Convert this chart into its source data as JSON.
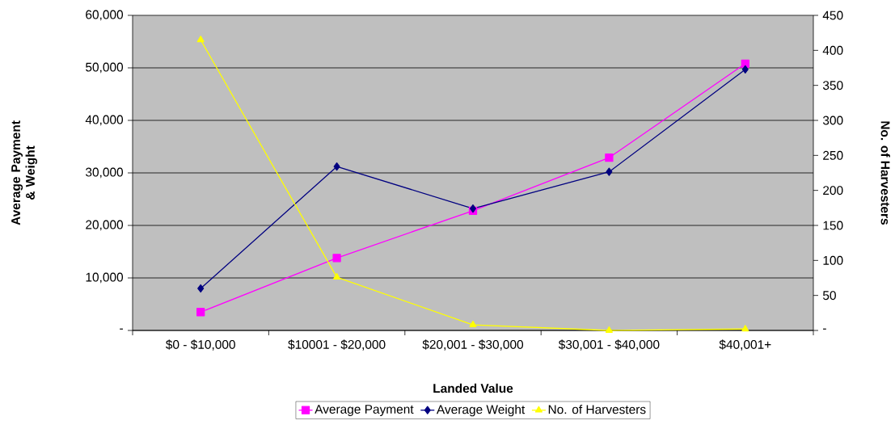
{
  "chart_data": {
    "type": "line",
    "xlabel": "Landed Value",
    "ylabel": "Average Payment & Weight",
    "y2label": "No. of Harvesters",
    "categories": [
      "$0 - $10,000",
      "$10001 - $20,000",
      "$20,001 - $30,000",
      "$30,001 - $40,000",
      "$40,001+"
    ],
    "series": [
      {
        "name": "Average Payment",
        "color": "#ff00ff",
        "marker": "square",
        "values": [
          3500,
          13800,
          22800,
          32900,
          50800
        ]
      },
      {
        "name": "Average Weight",
        "color": "#000080",
        "marker": "diamond",
        "values": [
          8000,
          31200,
          23200,
          30200,
          49700
        ]
      },
      {
        "name": "No. of Harvesters",
        "color": "#ffff00",
        "marker": "triangle",
        "axis": "y2",
        "values": [
          415,
          76,
          8,
          0,
          2
        ]
      }
    ],
    "ylim": [
      0,
      60000
    ],
    "yticks": [
      {
        "value": 0,
        "label": "-"
      },
      {
        "value": 10000,
        "label": "10,000"
      },
      {
        "value": 20000,
        "label": "20,000"
      },
      {
        "value": 30000,
        "label": "30,000"
      },
      {
        "value": 40000,
        "label": "40,000"
      },
      {
        "value": 50000,
        "label": "50,000"
      },
      {
        "value": 60000,
        "label": "60,000"
      }
    ],
    "y2lim": [
      0,
      450
    ],
    "y2ticks": [
      {
        "value": 0,
        "label": "-"
      },
      50,
      100,
      150,
      200,
      250,
      300,
      350,
      400,
      450
    ],
    "grid": "y",
    "legend": "bottom",
    "line_style": "solid"
  }
}
